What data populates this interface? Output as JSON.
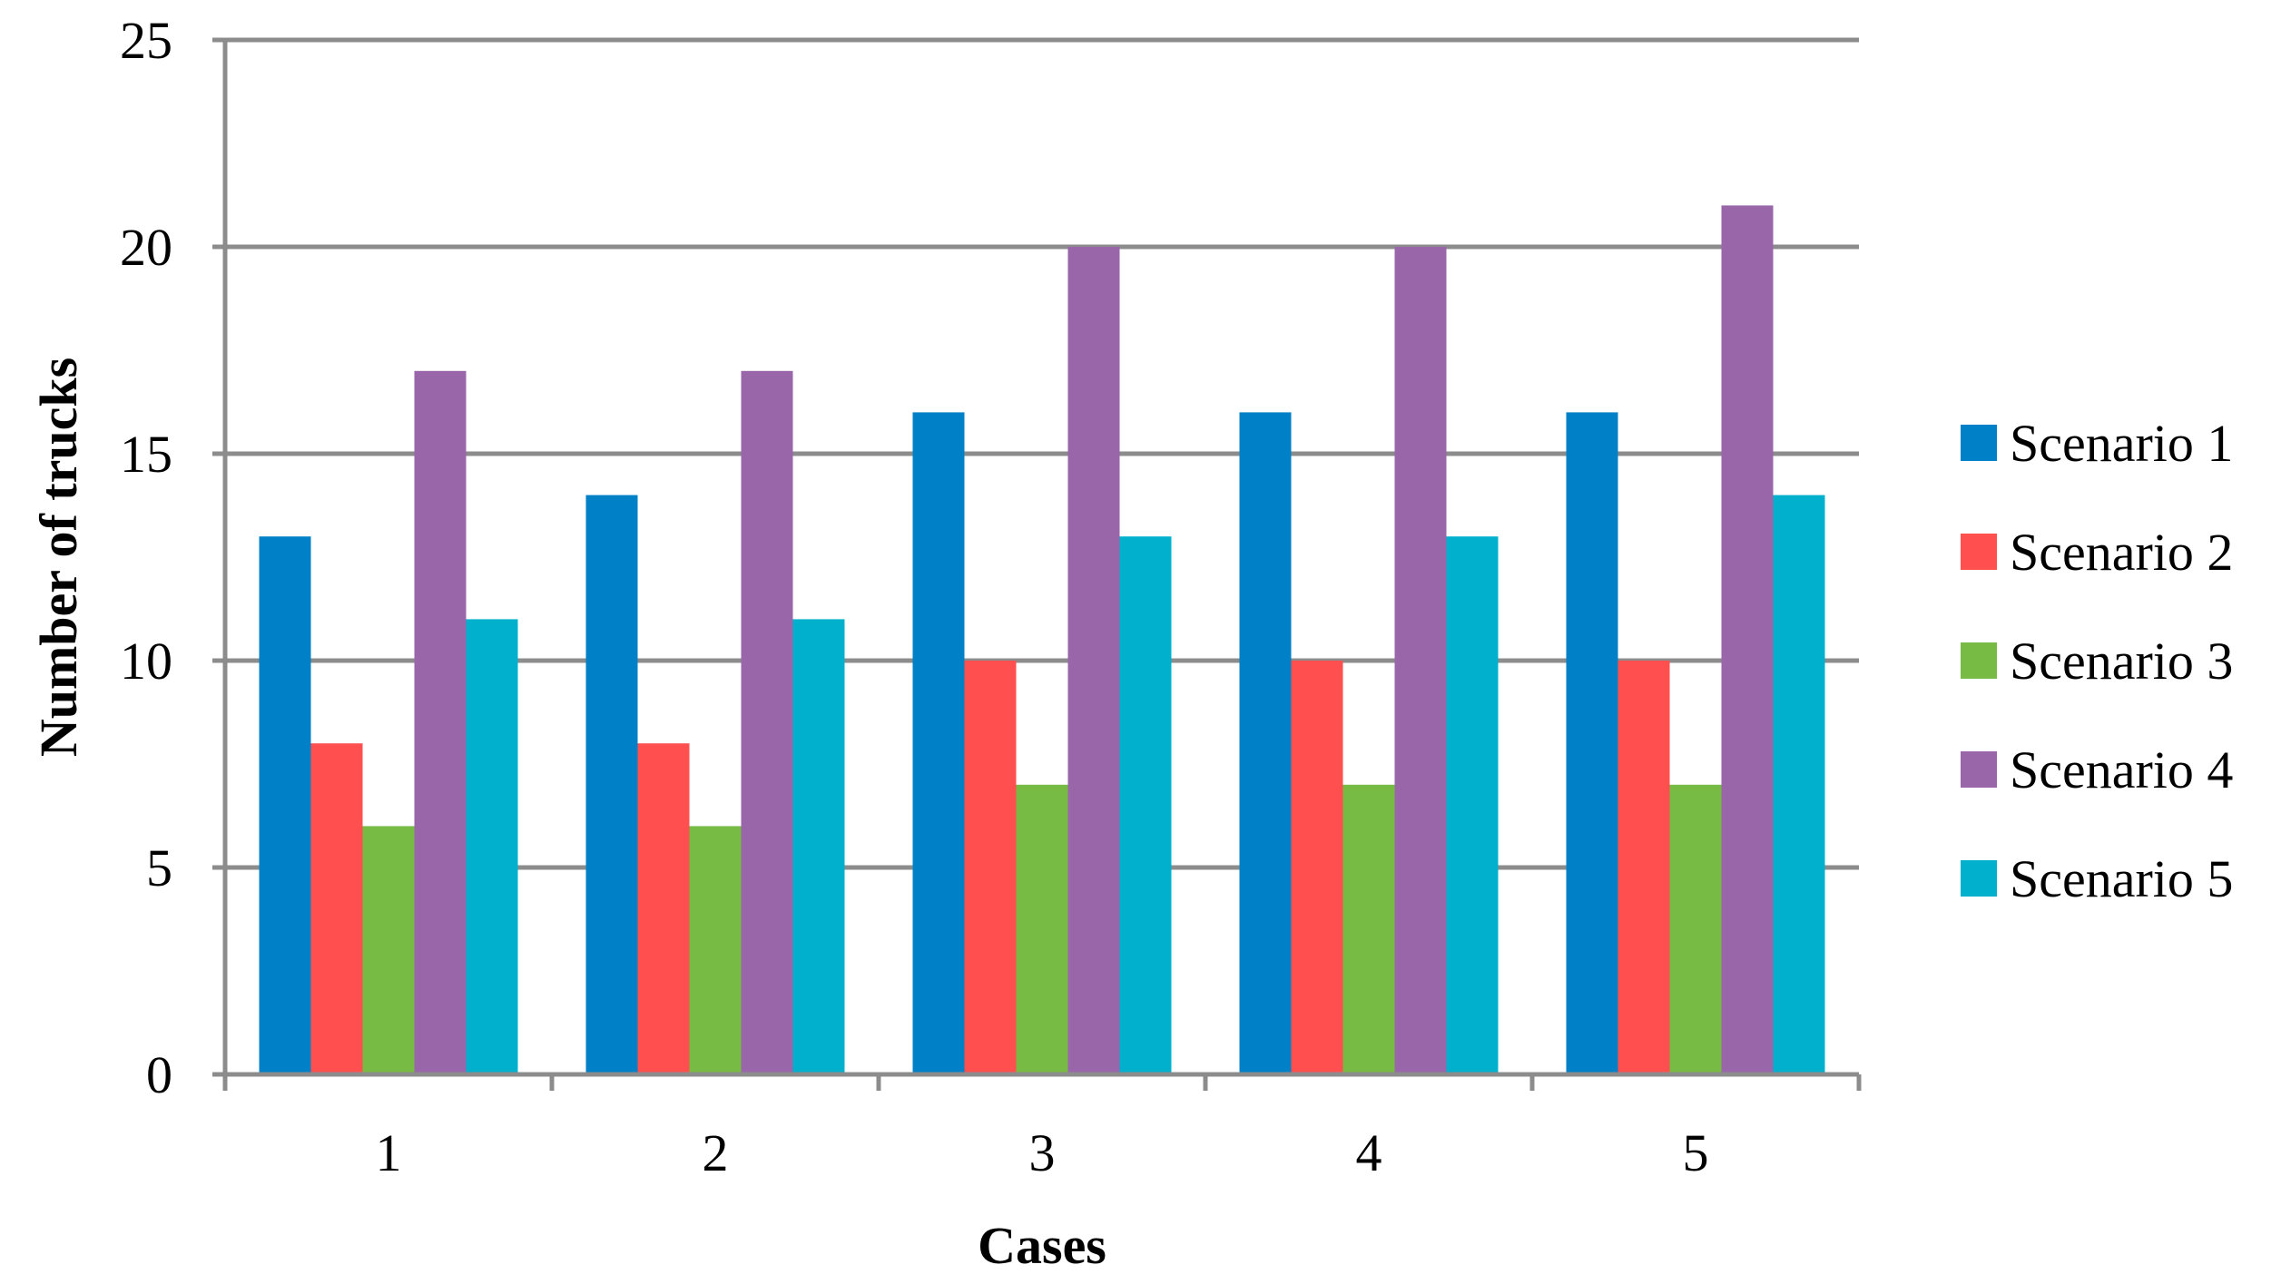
{
  "chart_data": {
    "type": "bar",
    "title": "",
    "xlabel": "Cases",
    "ylabel": "Number of trucks",
    "categories": [
      "1",
      "2",
      "3",
      "4",
      "5"
    ],
    "ylim": [
      0,
      25
    ],
    "yticks": [
      0,
      5,
      10,
      15,
      20,
      25
    ],
    "grid": true,
    "legend_position": "right",
    "series": [
      {
        "name": "Scenario 1",
        "color": "#0080C6",
        "values": [
          13,
          14,
          16,
          16,
          16
        ]
      },
      {
        "name": "Scenario 2",
        "color": "#FF4F4F",
        "values": [
          8,
          8,
          10,
          10,
          10
        ]
      },
      {
        "name": "Scenario 3",
        "color": "#77BB44",
        "values": [
          6,
          6,
          7,
          7,
          7
        ]
      },
      {
        "name": "Scenario 4",
        "color": "#9966AA",
        "values": [
          17,
          17,
          20,
          20,
          21
        ]
      },
      {
        "name": "Scenario 5",
        "color": "#00B0CC",
        "values": [
          11,
          11,
          13,
          13,
          14
        ]
      }
    ]
  }
}
